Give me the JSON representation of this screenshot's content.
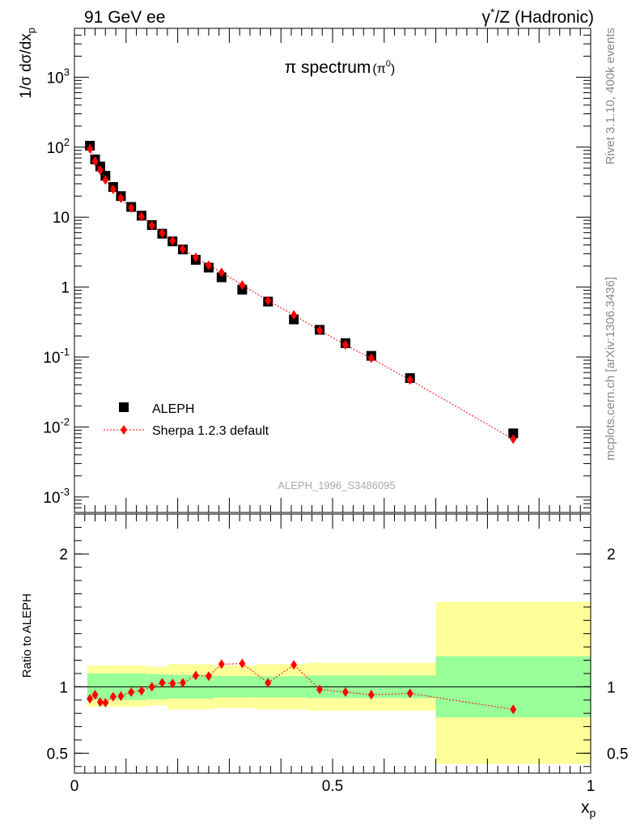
{
  "header": {
    "left": "91 GeV ee",
    "right_prefix": "γ",
    "right_sup": "*",
    "right_rest": "/Z (Hadronic)"
  },
  "side_labels": {
    "top": "Rivet 3.1.10,  400k events",
    "bottom": "mcplots.cern.ch [arXiv:1306.3436]"
  },
  "chart_data": [
    {
      "type": "scatter",
      "panel": "main",
      "title_main": "π spectrum",
      "title_paren_open": "(π",
      "title_sup": "0",
      "title_paren_close": ")",
      "ylabel": "1/σ dσ/dx",
      "ylabel_sub": "p",
      "yscale": "log",
      "ylim": [
        0.0006,
        5000
      ],
      "xlim": [
        0,
        1
      ],
      "watermark": "ALEPH_1996_S3486095",
      "legend_position": "bottom-left",
      "y_ticks": [
        {
          "v": 0.001,
          "mant": "10",
          "exp": "-3"
        },
        {
          "v": 0.01,
          "mant": "10",
          "exp": "-2"
        },
        {
          "v": 0.1,
          "mant": "10",
          "exp": "-1"
        },
        {
          "v": 1,
          "mant": "1",
          "exp": ""
        },
        {
          "v": 10,
          "mant": "10",
          "exp": ""
        },
        {
          "v": 100,
          "mant": "10",
          "exp": "2"
        },
        {
          "v": 1000,
          "mant": "10",
          "exp": "3"
        }
      ],
      "series": [
        {
          "name": "ALEPH",
          "marker": "square",
          "color": "#000000",
          "x": [
            0.03,
            0.04,
            0.05,
            0.06,
            0.075,
            0.09,
            0.11,
            0.13,
            0.15,
            0.17,
            0.19,
            0.21,
            0.235,
            0.26,
            0.285,
            0.325,
            0.375,
            0.425,
            0.475,
            0.525,
            0.575,
            0.65,
            0.85
          ],
          "y": [
            105,
            67,
            53,
            39,
            27,
            20,
            14,
            10.5,
            7.7,
            5.8,
            4.5,
            3.45,
            2.45,
            1.9,
            1.38,
            0.92,
            0.62,
            0.345,
            0.245,
            0.158,
            0.104,
            0.05,
            0.0081
          ]
        },
        {
          "name": "Sherpa 1.2.3 default",
          "marker": "diamond",
          "line": "dotted",
          "color": "#ff0000",
          "x": [
            0.03,
            0.04,
            0.05,
            0.06,
            0.075,
            0.09,
            0.11,
            0.13,
            0.15,
            0.17,
            0.19,
            0.21,
            0.235,
            0.26,
            0.285,
            0.325,
            0.375,
            0.425,
            0.475,
            0.525,
            0.575,
            0.65,
            0.85
          ],
          "y": [
            95,
            63,
            47,
            34,
            25,
            18.6,
            13.5,
            10.2,
            7.6,
            5.9,
            4.6,
            3.5,
            2.65,
            2.05,
            1.62,
            1.07,
            0.64,
            0.4,
            0.24,
            0.149,
            0.096,
            0.047,
            0.0067
          ]
        }
      ]
    },
    {
      "type": "scatter",
      "panel": "ratio",
      "ylabel": "Ratio to ALEPH",
      "xlabel": "x",
      "xlabel_sub": "p",
      "ylim": [
        0.35,
        2.3
      ],
      "xlim": [
        0,
        1
      ],
      "x_ticks": [
        {
          "v": 0,
          "label": "0"
        },
        {
          "v": 0.5,
          "label": "0.5"
        },
        {
          "v": 1,
          "label": "1"
        }
      ],
      "y_ticks": [
        {
          "v": 0.5,
          "label": "0.5"
        },
        {
          "v": 1,
          "label": "1"
        },
        {
          "v": 2,
          "label": "2"
        }
      ],
      "reference_line": 1,
      "bands": {
        "x_edges": [
          0.025,
          0.045,
          0.07,
          0.14,
          0.18,
          0.2,
          0.27,
          0.3,
          0.35,
          0.45,
          0.55,
          0.6,
          0.7,
          1.0
        ],
        "green_lo": [
          0.9,
          0.9,
          0.9,
          0.905,
          0.91,
          0.91,
          0.92,
          0.92,
          0.92,
          0.915,
          0.915,
          0.915,
          0.77
        ],
        "green_hi": [
          1.1,
          1.1,
          1.1,
          1.095,
          1.09,
          1.09,
          1.08,
          1.08,
          1.08,
          1.085,
          1.085,
          1.085,
          1.23
        ],
        "yellow_lo": [
          0.85,
          0.85,
          0.85,
          0.86,
          0.83,
          0.83,
          0.84,
          0.84,
          0.83,
          0.82,
          0.82,
          0.82,
          0.42
        ],
        "yellow_hi": [
          1.16,
          1.16,
          1.16,
          1.15,
          1.17,
          1.17,
          1.16,
          1.16,
          1.17,
          1.18,
          1.18,
          1.18,
          1.64
        ],
        "green_color": "#99ff99",
        "yellow_color": "#ffff99"
      },
      "series": [
        {
          "name": "Sherpa 1.2.3 default",
          "marker": "diamond",
          "line": "dotted",
          "color": "#ff0000",
          "x": [
            0.03,
            0.04,
            0.05,
            0.06,
            0.075,
            0.09,
            0.11,
            0.13,
            0.15,
            0.17,
            0.19,
            0.21,
            0.235,
            0.26,
            0.285,
            0.325,
            0.375,
            0.425,
            0.475,
            0.525,
            0.575,
            0.65,
            0.85
          ],
          "y": [
            0.91,
            0.94,
            0.885,
            0.88,
            0.925,
            0.93,
            0.96,
            0.97,
            1.0,
            1.03,
            1.025,
            1.03,
            1.085,
            1.08,
            1.17,
            1.175,
            1.03,
            1.165,
            0.98,
            0.96,
            0.94,
            0.95,
            0.83
          ]
        }
      ]
    }
  ]
}
